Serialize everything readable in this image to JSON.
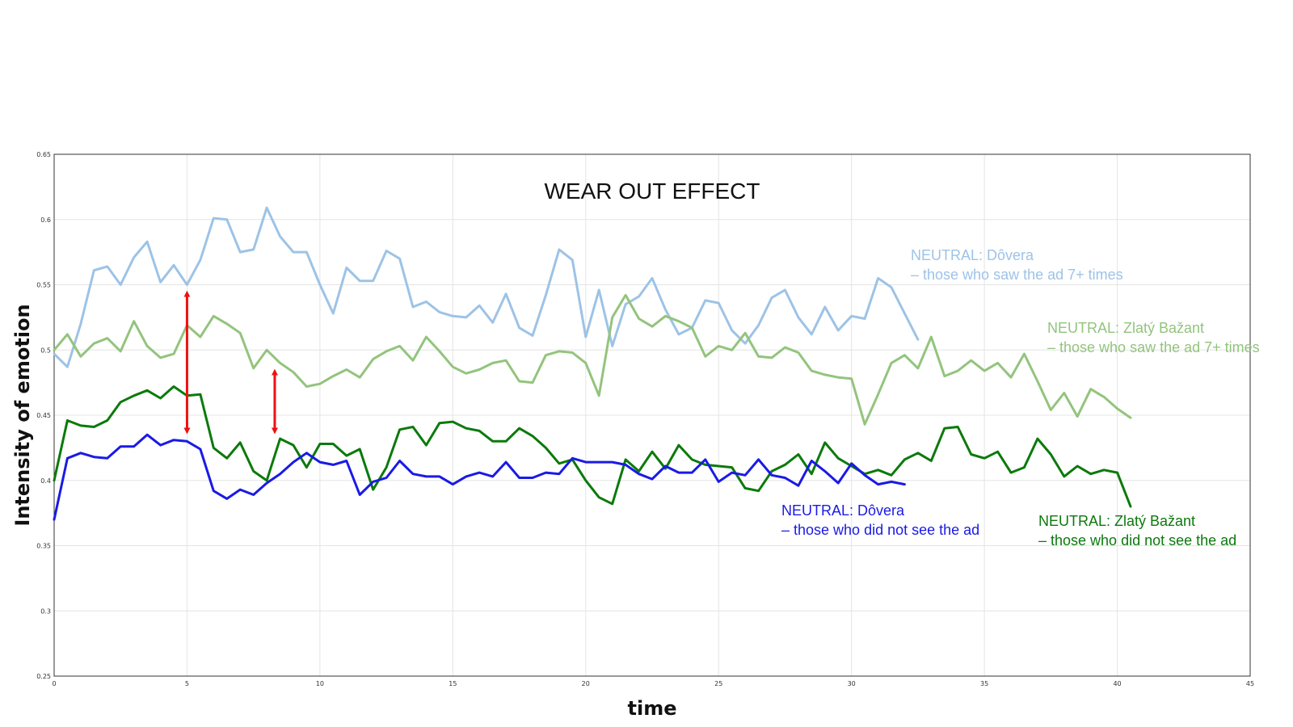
{
  "chart_data": {
    "type": "line",
    "title": "WEAR OUT EFFECT",
    "xlabel": "time",
    "ylabel": "Intensity of emotion",
    "xlim": [
      0,
      45
    ],
    "ylim": [
      0.25,
      0.65
    ],
    "xticks": [
      0,
      5,
      10,
      15,
      20,
      25,
      30,
      35,
      40,
      45
    ],
    "yticks": [
      0.25,
      0.3,
      0.35,
      0.4,
      0.45,
      0.5,
      0.55,
      0.6,
      0.65
    ],
    "grid": true,
    "series": [
      {
        "name": "Dôvera 7+",
        "label_line1": "NEUTRAL: Dôvera",
        "label_line2": "– those who saw the ad 7+ times",
        "color": "#9dc3e6",
        "x0": 0,
        "dx": 0.5,
        "values": [
          0.497,
          0.487,
          0.52,
          0.561,
          0.564,
          0.55,
          0.571,
          0.583,
          0.552,
          0.565,
          0.55,
          0.569,
          0.601,
          0.6,
          0.575,
          0.577,
          0.609,
          0.587,
          0.575,
          0.575,
          0.55,
          0.528,
          0.563,
          0.553,
          0.553,
          0.576,
          0.57,
          0.533,
          0.537,
          0.529,
          0.526,
          0.525,
          0.534,
          0.521,
          0.543,
          0.517,
          0.511,
          0.542,
          0.577,
          0.569,
          0.51,
          0.546,
          0.503,
          0.535,
          0.541,
          0.555,
          0.531,
          0.512,
          0.517,
          0.538,
          0.536,
          0.515,
          0.505,
          0.519,
          0.54,
          0.546,
          0.525,
          0.512,
          0.533,
          0.515,
          0.526,
          0.524,
          0.555,
          0.548,
          0.528,
          0.508
        ]
      },
      {
        "name": "Zlatý Bažant 7+",
        "label_line1": "NEUTRAL: Zlatý Bažant",
        "label_line2": "– those who saw the ad 7+ times",
        "color": "#93c47d",
        "x0": 0,
        "dx": 0.5,
        "values": [
          0.5,
          0.512,
          0.495,
          0.505,
          0.509,
          0.499,
          0.522,
          0.503,
          0.494,
          0.497,
          0.519,
          0.51,
          0.526,
          0.52,
          0.513,
          0.486,
          0.5,
          0.49,
          0.483,
          0.472,
          0.474,
          0.48,
          0.485,
          0.479,
          0.493,
          0.499,
          0.503,
          0.492,
          0.51,
          0.499,
          0.487,
          0.482,
          0.485,
          0.49,
          0.492,
          0.476,
          0.475,
          0.496,
          0.499,
          0.498,
          0.49,
          0.465,
          0.525,
          0.542,
          0.524,
          0.518,
          0.526,
          0.522,
          0.517,
          0.495,
          0.503,
          0.5,
          0.513,
          0.495,
          0.494,
          0.502,
          0.498,
          0.484,
          0.481,
          0.479,
          0.478,
          0.443,
          0.466,
          0.49,
          0.496,
          0.486,
          0.51,
          0.48,
          0.484,
          0.492,
          0.484,
          0.49,
          0.479,
          0.497,
          0.476,
          0.454,
          0.467,
          0.449,
          0.47,
          0.464,
          0.455,
          0.448
        ]
      },
      {
        "name": "Zlatý Bažant did not see",
        "label_line1": "NEUTRAL: Zlatý Bažant",
        "label_line2": "– those who did not see the ad",
        "color": "#0b7a0b",
        "x0": 0,
        "dx": 0.5,
        "values": [
          0.4,
          0.446,
          0.442,
          0.441,
          0.446,
          0.46,
          0.465,
          0.469,
          0.463,
          0.472,
          0.465,
          0.466,
          0.425,
          0.417,
          0.429,
          0.407,
          0.4,
          0.432,
          0.427,
          0.41,
          0.428,
          0.428,
          0.419,
          0.424,
          0.393,
          0.41,
          0.439,
          0.441,
          0.427,
          0.444,
          0.445,
          0.44,
          0.438,
          0.43,
          0.43,
          0.44,
          0.434,
          0.425,
          0.413,
          0.416,
          0.4,
          0.387,
          0.382,
          0.416,
          0.407,
          0.422,
          0.409,
          0.427,
          0.416,
          0.412,
          0.411,
          0.41,
          0.394,
          0.392,
          0.407,
          0.412,
          0.42,
          0.405,
          0.429,
          0.417,
          0.411,
          0.405,
          0.408,
          0.404,
          0.416,
          0.421,
          0.415,
          0.44,
          0.441,
          0.42,
          0.417,
          0.422,
          0.406,
          0.41,
          0.432,
          0.42,
          0.403,
          0.411,
          0.405,
          0.408,
          0.406,
          0.38
        ]
      },
      {
        "name": "Dôvera did not see",
        "label_line1": "NEUTRAL: Dôvera",
        "label_line2": "– those who did not see the ad",
        "color": "#1a1ae6",
        "x0": 0,
        "dx": 0.5,
        "values": [
          0.37,
          0.417,
          0.421,
          0.418,
          0.417,
          0.426,
          0.426,
          0.435,
          0.427,
          0.431,
          0.43,
          0.424,
          0.392,
          0.386,
          0.393,
          0.389,
          0.398,
          0.405,
          0.414,
          0.421,
          0.414,
          0.412,
          0.415,
          0.389,
          0.399,
          0.402,
          0.415,
          0.405,
          0.403,
          0.403,
          0.397,
          0.403,
          0.406,
          0.403,
          0.414,
          0.402,
          0.402,
          0.406,
          0.405,
          0.417,
          0.414,
          0.414,
          0.414,
          0.412,
          0.405,
          0.401,
          0.411,
          0.406,
          0.406,
          0.416,
          0.399,
          0.406,
          0.404,
          0.416,
          0.404,
          0.402,
          0.396,
          0.415,
          0.407,
          0.398,
          0.413,
          0.404,
          0.397,
          0.399,
          0.397
        ]
      }
    ],
    "annotations": [
      {
        "type": "double-arrow",
        "x": 5.0,
        "y_top": 0.548,
        "y_bottom": 0.433,
        "color": "#ee1111"
      },
      {
        "type": "double-arrow",
        "x": 8.3,
        "y_top": 0.488,
        "y_bottom": 0.433,
        "color": "#ee1111"
      }
    ]
  }
}
